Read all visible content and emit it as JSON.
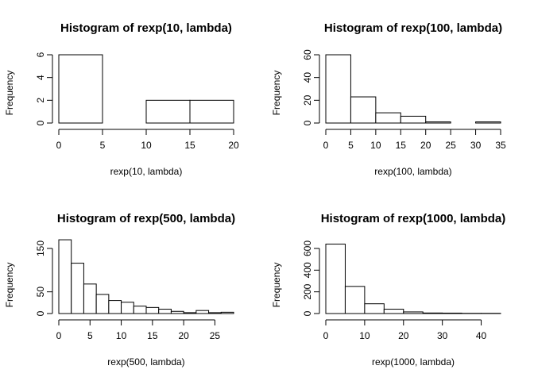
{
  "chart_data": [
    {
      "type": "bar",
      "title": "Histogram of rexp(10, lambda)",
      "xlabel": "rexp(10, lambda)",
      "ylabel": "Frequency",
      "bin_edges": [
        0,
        5,
        10,
        15,
        20
      ],
      "values": [
        6,
        0,
        2,
        2
      ],
      "xlim": [
        0,
        20
      ],
      "ylim": [
        0,
        6
      ],
      "xticks": [
        0,
        5,
        10,
        15,
        20
      ],
      "yticks": [
        0,
        2,
        4,
        6
      ]
    },
    {
      "type": "bar",
      "title": "Histogram of rexp(100, lambda)",
      "xlabel": "rexp(100, lambda)",
      "ylabel": "Frequency",
      "bin_edges": [
        0,
        5,
        10,
        15,
        20,
        25,
        30,
        35
      ],
      "values": [
        60,
        23,
        9,
        6,
        1,
        0,
        1
      ],
      "xlim": [
        0,
        35
      ],
      "ylim": [
        0,
        60
      ],
      "xticks": [
        0,
        5,
        10,
        15,
        20,
        25,
        30,
        35
      ],
      "yticks": [
        0,
        20,
        40,
        60
      ]
    },
    {
      "type": "bar",
      "title": "Histogram of rexp(500, lambda)",
      "xlabel": "rexp(500, lambda)",
      "ylabel": "Frequency",
      "bin_edges": [
        0,
        2,
        4,
        6,
        8,
        10,
        12,
        14,
        16,
        18,
        20,
        22,
        24,
        26,
        28
      ],
      "values": [
        170,
        116,
        68,
        44,
        30,
        26,
        17,
        14,
        10,
        5,
        2,
        7,
        2,
        3
      ],
      "xlim": [
        0,
        28
      ],
      "ylim": [
        0,
        150
      ],
      "xticks": [
        0,
        5,
        10,
        15,
        20,
        25
      ],
      "yticks": [
        0,
        50,
        150
      ]
    },
    {
      "type": "bar",
      "title": "Histogram of rexp(1000, lambda)",
      "xlabel": "rexp(1000, lambda)",
      "ylabel": "Frequency",
      "bin_edges": [
        0,
        5,
        10,
        15,
        20,
        25,
        30,
        35,
        40,
        45
      ],
      "values": [
        640,
        250,
        90,
        40,
        15,
        5,
        4,
        2,
        2
      ],
      "xlim": [
        0,
        45
      ],
      "ylim": [
        0,
        600
      ],
      "xticks": [
        0,
        10,
        20,
        30,
        40
      ],
      "yticks": [
        0,
        200,
        400,
        600
      ]
    }
  ]
}
